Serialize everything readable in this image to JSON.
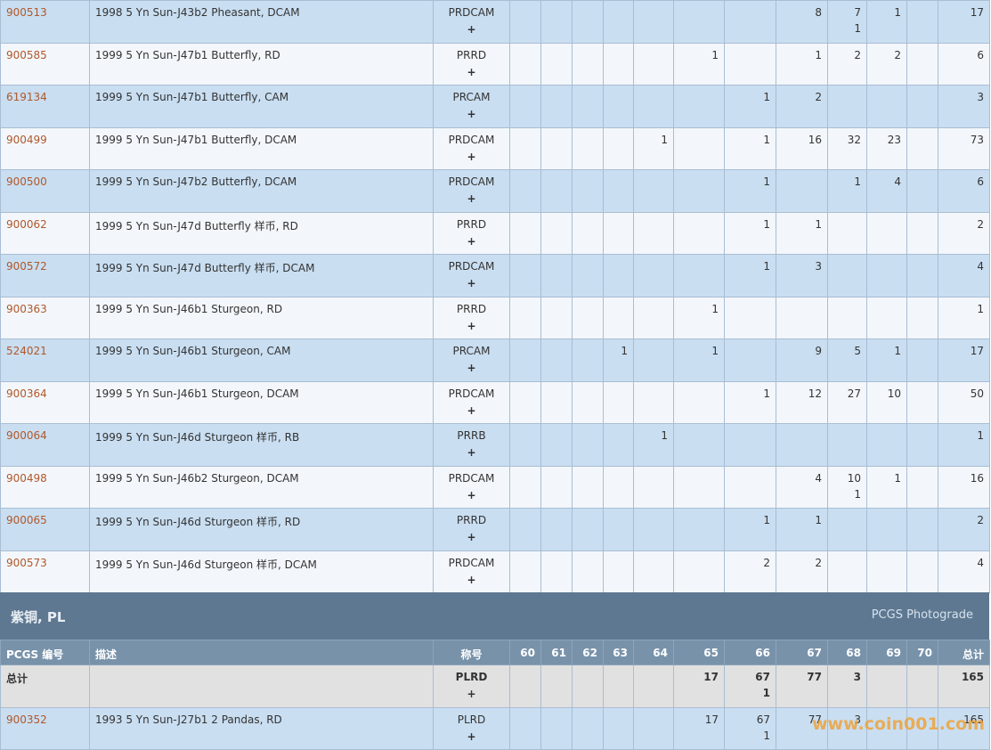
{
  "plus_sign": "+",
  "rows_top": [
    {
      "pcgs": "900513",
      "description": "1998 5 Yn Sun-J43b2 Pheasant, DCAM",
      "designation": "PRDCAM",
      "counts": [
        null,
        null,
        null,
        null,
        null,
        null,
        null,
        8,
        7,
        1,
        null
      ],
      "plus": [
        null,
        null,
        null,
        null,
        null,
        null,
        null,
        null,
        1,
        null,
        null
      ],
      "total": 17
    },
    {
      "pcgs": "900585",
      "description": "1999 5 Yn Sun-J47b1 Butterfly, RD",
      "designation": "PRRD",
      "counts": [
        null,
        null,
        null,
        null,
        null,
        1,
        null,
        1,
        2,
        2,
        null
      ],
      "plus": [
        null,
        null,
        null,
        null,
        null,
        null,
        null,
        null,
        null,
        null,
        null
      ],
      "total": 6
    },
    {
      "pcgs": "619134",
      "description": "1999 5 Yn Sun-J47b1 Butterfly, CAM",
      "designation": "PRCAM",
      "counts": [
        null,
        null,
        null,
        null,
        null,
        null,
        1,
        2,
        null,
        null,
        null
      ],
      "plus": [
        null,
        null,
        null,
        null,
        null,
        null,
        null,
        null,
        null,
        null,
        null
      ],
      "total": 3
    },
    {
      "pcgs": "900499",
      "description": "1999 5 Yn Sun-J47b1 Butterfly, DCAM",
      "designation": "PRDCAM",
      "counts": [
        null,
        null,
        null,
        null,
        1,
        null,
        1,
        16,
        32,
        23,
        null
      ],
      "plus": [
        null,
        null,
        null,
        null,
        null,
        null,
        null,
        null,
        null,
        null,
        null
      ],
      "total": 73
    },
    {
      "pcgs": "900500",
      "description": "1999 5 Yn Sun-J47b2 Butterfly, DCAM",
      "designation": "PRDCAM",
      "counts": [
        null,
        null,
        null,
        null,
        null,
        null,
        1,
        null,
        1,
        4,
        null
      ],
      "plus": [
        null,
        null,
        null,
        null,
        null,
        null,
        null,
        null,
        null,
        null,
        null
      ],
      "total": 6
    },
    {
      "pcgs": "900062",
      "description": "1999 5 Yn Sun-J47d Butterfly 样币, RD",
      "designation": "PRRD",
      "counts": [
        null,
        null,
        null,
        null,
        null,
        null,
        1,
        1,
        null,
        null,
        null
      ],
      "plus": [
        null,
        null,
        null,
        null,
        null,
        null,
        null,
        null,
        null,
        null,
        null
      ],
      "total": 2
    },
    {
      "pcgs": "900572",
      "description": "1999 5 Yn Sun-J47d Butterfly 样币, DCAM",
      "designation": "PRDCAM",
      "counts": [
        null,
        null,
        null,
        null,
        null,
        null,
        1,
        3,
        null,
        null,
        null
      ],
      "plus": [
        null,
        null,
        null,
        null,
        null,
        null,
        null,
        null,
        null,
        null,
        null
      ],
      "total": 4
    },
    {
      "pcgs": "900363",
      "description": "1999 5 Yn Sun-J46b1 Sturgeon, RD",
      "designation": "PRRD",
      "counts": [
        null,
        null,
        null,
        null,
        null,
        1,
        null,
        null,
        null,
        null,
        null
      ],
      "plus": [
        null,
        null,
        null,
        null,
        null,
        null,
        null,
        null,
        null,
        null,
        null
      ],
      "total": 1
    },
    {
      "pcgs": "524021",
      "description": "1999 5 Yn Sun-J46b1 Sturgeon, CAM",
      "designation": "PRCAM",
      "counts": [
        null,
        null,
        null,
        1,
        null,
        1,
        null,
        9,
        5,
        1,
        null
      ],
      "plus": [
        null,
        null,
        null,
        null,
        null,
        null,
        null,
        null,
        null,
        null,
        null
      ],
      "total": 17
    },
    {
      "pcgs": "900364",
      "description": "1999 5 Yn Sun-J46b1 Sturgeon, DCAM",
      "designation": "PRDCAM",
      "counts": [
        null,
        null,
        null,
        null,
        null,
        null,
        1,
        12,
        27,
        10,
        null
      ],
      "plus": [
        null,
        null,
        null,
        null,
        null,
        null,
        null,
        null,
        null,
        null,
        null
      ],
      "total": 50
    },
    {
      "pcgs": "900064",
      "description": "1999 5 Yn Sun-J46d Sturgeon 样币, RB",
      "designation": "PRRB",
      "counts": [
        null,
        null,
        null,
        null,
        1,
        null,
        null,
        null,
        null,
        null,
        null
      ],
      "plus": [
        null,
        null,
        null,
        null,
        null,
        null,
        null,
        null,
        null,
        null,
        null
      ],
      "total": 1
    },
    {
      "pcgs": "900498",
      "description": "1999 5 Yn Sun-J46b2 Sturgeon, DCAM",
      "designation": "PRDCAM",
      "counts": [
        null,
        null,
        null,
        null,
        null,
        null,
        null,
        4,
        10,
        1,
        null
      ],
      "plus": [
        null,
        null,
        null,
        null,
        null,
        null,
        null,
        null,
        1,
        null,
        null
      ],
      "total": 16
    },
    {
      "pcgs": "900065",
      "description": "1999 5 Yn Sun-J46d Sturgeon 样币, RD",
      "designation": "PRRD",
      "counts": [
        null,
        null,
        null,
        null,
        null,
        null,
        1,
        1,
        null,
        null,
        null
      ],
      "plus": [
        null,
        null,
        null,
        null,
        null,
        null,
        null,
        null,
        null,
        null,
        null
      ],
      "total": 2
    },
    {
      "pcgs": "900573",
      "description": "1999 5 Yn Sun-J46d Sturgeon 样币, DCAM",
      "designation": "PRDCAM",
      "counts": [
        null,
        null,
        null,
        null,
        null,
        null,
        2,
        2,
        null,
        null,
        null
      ],
      "plus": [
        null,
        null,
        null,
        null,
        null,
        null,
        null,
        null,
        null,
        null,
        null
      ],
      "total": 4
    }
  ],
  "section": {
    "title": "紫铜, PL",
    "link": "PCGS Photograde"
  },
  "header": {
    "pcgs": "PCGS 编号",
    "description": "描述",
    "designation": "称号",
    "grades": [
      60,
      61,
      62,
      63,
      64,
      65,
      66,
      67,
      68,
      69,
      70
    ],
    "total": "总计"
  },
  "total_row": {
    "label": "总计",
    "designation": "PLRD",
    "counts": [
      null,
      null,
      null,
      null,
      null,
      17,
      67,
      77,
      3,
      null,
      null
    ],
    "plus": [
      null,
      null,
      null,
      null,
      null,
      null,
      1,
      null,
      null,
      null,
      null
    ],
    "total": 165
  },
  "rows_bottom": [
    {
      "pcgs": "900352",
      "description": "1993 5 Yn Sun-J27b1 2 Pandas, RD",
      "designation": "PLRD",
      "counts": [
        null,
        null,
        null,
        null,
        null,
        17,
        67,
        77,
        3,
        null,
        null
      ],
      "plus": [
        null,
        null,
        null,
        null,
        null,
        null,
        1,
        null,
        null,
        null,
        null
      ],
      "total": 165
    }
  ],
  "watermark": "www.coin001.com"
}
